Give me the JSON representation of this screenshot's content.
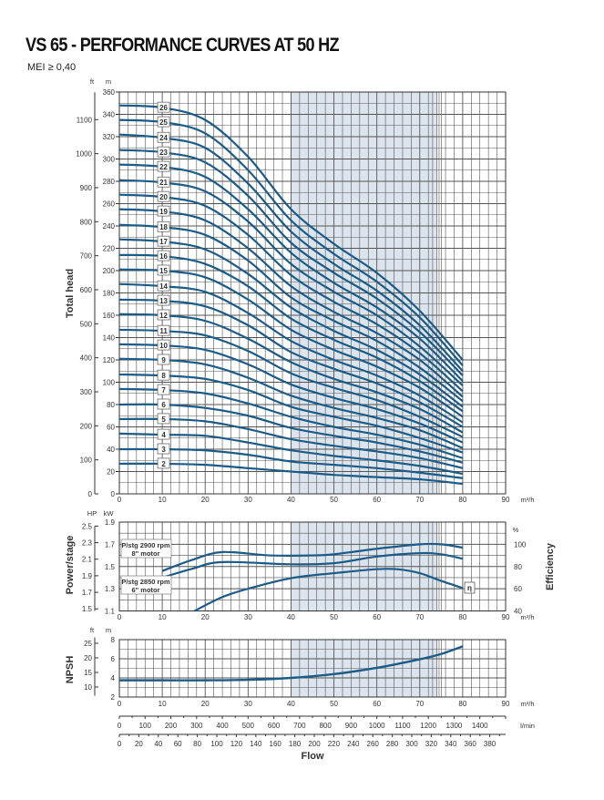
{
  "title": "VS 65 - PERFORMANCE CURVES AT 50 HZ",
  "subtitle": "MEI ≥ 0,40",
  "colors": {
    "curve": "#1b5b87",
    "shade": "#dce5ee",
    "grid": "#555555"
  },
  "chart_data": [
    {
      "type": "line",
      "ylabel": "Total head",
      "xlabel": "Flow",
      "x_unit": "m³/h",
      "y_unit_left_primary": "m",
      "y_unit_left_secondary": "ft",
      "xlim": [
        0,
        90
      ],
      "ylim": [
        0,
        360
      ],
      "grid": true,
      "shaded_range": [
        40,
        74
      ],
      "x_ticks": [
        0,
        10,
        20,
        30,
        40,
        50,
        60,
        70,
        80,
        90
      ],
      "y_ticks_m": [
        0,
        20,
        40,
        60,
        80,
        100,
        120,
        140,
        160,
        180,
        200,
        220,
        240,
        260,
        280,
        300,
        320,
        340,
        360
      ],
      "y_ticks_ft": [
        0,
        100,
        200,
        300,
        400,
        500,
        600,
        700,
        800,
        900,
        1000,
        1100
      ],
      "x": [
        0,
        10,
        20,
        30,
        40,
        50,
        60,
        70,
        80
      ],
      "series": [
        {
          "name": "2",
          "values": [
            27,
            27,
            26,
            23,
            20,
            17,
            15,
            13,
            9
          ]
        },
        {
          "name": "3",
          "values": [
            40,
            40,
            39,
            35,
            29,
            26,
            23,
            19,
            14
          ]
        },
        {
          "name": "4",
          "values": [
            54,
            53,
            52,
            46,
            39,
            34,
            30,
            25,
            18
          ]
        },
        {
          "name": "5",
          "values": [
            67,
            67,
            65,
            58,
            49,
            43,
            38,
            32,
            23
          ]
        },
        {
          "name": "6",
          "values": [
            80,
            80,
            77,
            70,
            59,
            52,
            46,
            38,
            28
          ]
        },
        {
          "name": "7",
          "values": [
            94,
            93,
            90,
            81,
            69,
            60,
            53,
            44,
            32
          ]
        },
        {
          "name": "8",
          "values": [
            107,
            106,
            103,
            93,
            78,
            69,
            61,
            50,
            37
          ]
        },
        {
          "name": "9",
          "values": [
            121,
            120,
            116,
            104,
            88,
            77,
            68,
            57,
            41
          ]
        },
        {
          "name": "10",
          "values": [
            134,
            133,
            129,
            116,
            98,
            86,
            76,
            63,
            46
          ]
        },
        {
          "name": "11",
          "values": [
            147,
            146,
            142,
            128,
            108,
            95,
            84,
            69,
            51
          ]
        },
        {
          "name": "12",
          "values": [
            161,
            160,
            155,
            139,
            118,
            103,
            91,
            76,
            55
          ]
        },
        {
          "name": "13",
          "values": [
            174,
            173,
            168,
            151,
            127,
            112,
            99,
            82,
            60
          ]
        },
        {
          "name": "14",
          "values": [
            188,
            186,
            181,
            162,
            137,
            120,
            106,
            88,
            64
          ]
        },
        {
          "name": "15",
          "values": [
            201,
            200,
            194,
            174,
            147,
            129,
            114,
            95,
            69
          ]
        },
        {
          "name": "16",
          "values": [
            214,
            213,
            206,
            186,
            157,
            138,
            122,
            101,
            74
          ]
        },
        {
          "name": "17",
          "values": [
            228,
            226,
            219,
            197,
            167,
            146,
            129,
            107,
            78
          ]
        },
        {
          "name": "18",
          "values": [
            241,
            239,
            232,
            209,
            176,
            155,
            137,
            113,
            83
          ]
        },
        {
          "name": "19",
          "values": [
            255,
            253,
            245,
            220,
            186,
            163,
            144,
            120,
            87
          ]
        },
        {
          "name": "20",
          "values": [
            268,
            266,
            258,
            232,
            196,
            172,
            152,
            126,
            92
          ]
        },
        {
          "name": "21",
          "values": [
            281,
            279,
            271,
            244,
            206,
            181,
            160,
            132,
            97
          ]
        },
        {
          "name": "22",
          "values": [
            295,
            293,
            284,
            255,
            216,
            189,
            167,
            139,
            101
          ]
        },
        {
          "name": "23",
          "values": [
            308,
            306,
            297,
            267,
            225,
            198,
            175,
            145,
            106
          ]
        },
        {
          "name": "24",
          "values": [
            322,
            319,
            310,
            278,
            235,
            206,
            182,
            151,
            110
          ]
        },
        {
          "name": "25",
          "values": [
            335,
            333,
            323,
            290,
            245,
            215,
            190,
            158,
            115
          ]
        },
        {
          "name": "26",
          "values": [
            348,
            346,
            335,
            302,
            255,
            224,
            198,
            164,
            120
          ]
        }
      ]
    },
    {
      "type": "line",
      "ylabel": "Power/stage",
      "ylabel_right": "Efficiency",
      "x_unit": "m³/h",
      "y_unit_left_primary": "kW",
      "y_unit_left_secondary": "HP",
      "y_unit_right": "%",
      "xlim": [
        0,
        90
      ],
      "ylim": [
        1.1,
        1.9
      ],
      "ylim_right": [
        40,
        120
      ],
      "grid": true,
      "shaded_range": [
        40,
        74
      ],
      "x_ticks": [
        0,
        10,
        20,
        30,
        40,
        50,
        60,
        70,
        80,
        90
      ],
      "y_ticks_kw": [
        1.1,
        1.3,
        1.5,
        1.7,
        1.9
      ],
      "y_ticks_hp": [
        1.5,
        1.7,
        1.9,
        2.1,
        2.3,
        2.5
      ],
      "y_ticks_pct": [
        40,
        60,
        80,
        100
      ],
      "series": [
        {
          "name": "P/stg 2900 rpm",
          "sub": "8\" motor",
          "axis": "kW",
          "x": [
            10,
            17,
            24,
            35,
            45,
            50,
            60,
            70,
            75,
            80
          ],
          "values": [
            1.46,
            1.56,
            1.63,
            1.6,
            1.6,
            1.61,
            1.66,
            1.7,
            1.7,
            1.67
          ]
        },
        {
          "name": "P/stg 2850 rpm",
          "sub": "6\" motor",
          "axis": "kW",
          "x": [
            10,
            17,
            24,
            40,
            50,
            60,
            70,
            75,
            80
          ],
          "values": [
            1.4,
            1.48,
            1.54,
            1.52,
            1.53,
            1.59,
            1.62,
            1.61,
            1.57
          ]
        },
        {
          "name": "η",
          "axis": "%",
          "x": [
            17.5,
            24,
            30,
            40,
            50,
            60,
            65,
            70,
            75,
            80
          ],
          "values": [
            40,
            52.5,
            60,
            69.5,
            74,
            77.6,
            77.5,
            74,
            67,
            60.6
          ]
        }
      ]
    },
    {
      "type": "line",
      "ylabel": "NPSH",
      "x_unit": "m³/h",
      "y_unit_left_primary": "m",
      "y_unit_left_secondary": "ft",
      "xlim": [
        0,
        90
      ],
      "ylim": [
        2,
        8
      ],
      "grid": true,
      "shaded_range": [
        40,
        74
      ],
      "x_ticks": [
        0,
        10,
        20,
        30,
        40,
        50,
        60,
        70,
        80,
        90
      ],
      "y_ticks_m": [
        2,
        4,
        6,
        8
      ],
      "y_ticks_ft": [
        10,
        15,
        20,
        25
      ],
      "x": [
        0,
        10,
        20,
        30,
        40,
        50,
        60,
        70,
        75,
        80
      ],
      "values": [
        3.75,
        3.75,
        3.75,
        3.8,
        4.0,
        4.4,
        5.05,
        5.95,
        6.5,
        7.3
      ]
    }
  ],
  "flow_axes": {
    "title": "Flow",
    "lmin_unit": "l/min",
    "lmin_ticks": [
      0,
      100,
      200,
      300,
      400,
      500,
      600,
      700,
      800,
      900,
      1000,
      1100,
      1200,
      1300,
      1400
    ],
    "gpm_ticks": [
      0,
      20,
      40,
      60,
      80,
      100,
      120,
      140,
      160,
      180,
      200,
      220,
      240,
      260,
      280,
      300,
      320,
      340,
      360,
      380
    ]
  }
}
